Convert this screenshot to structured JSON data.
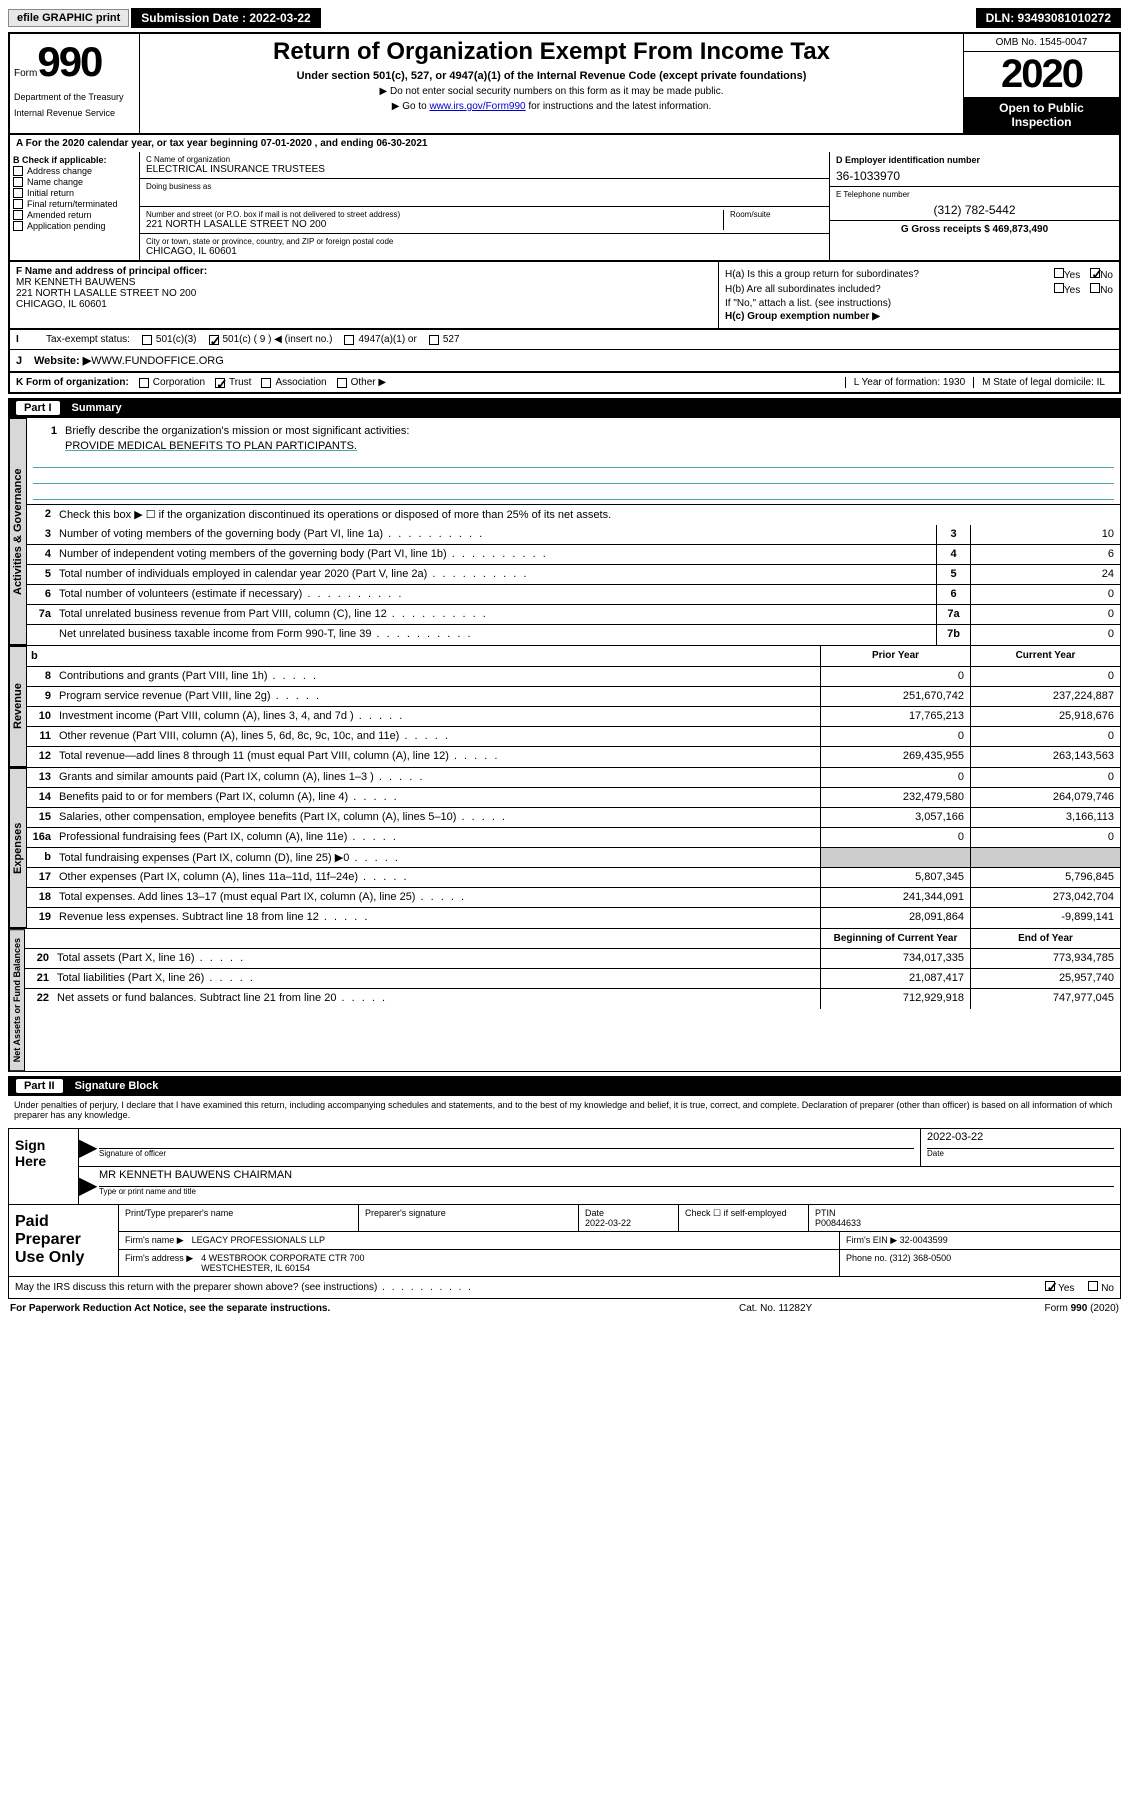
{
  "topbar": {
    "efile": "efile GRAPHIC print",
    "submission_label": "Submission Date : 2022-03-22",
    "dln": "DLN: 93493081010272"
  },
  "header": {
    "form_word": "Form",
    "form_num": "990",
    "dept1": "Department of the Treasury",
    "dept2": "Internal Revenue Service",
    "title": "Return of Organization Exempt From Income Tax",
    "subtitle": "Under section 501(c), 527, or 4947(a)(1) of the Internal Revenue Code (except private foundations)",
    "instruct1": "▶ Do not enter social security numbers on this form as it may be made public.",
    "instruct2_pre": "▶ Go to ",
    "instruct2_link": "www.irs.gov/Form990",
    "instruct2_post": " for instructions and the latest information.",
    "omb": "OMB No. 1545-0047",
    "year": "2020",
    "open1": "Open to Public",
    "open2": "Inspection"
  },
  "section_a": {
    "a_text": "A For the 2020 calendar year, or tax year beginning 07-01-2020    , and ending 06-30-2021",
    "b_label": "B Check if applicable:",
    "checks": [
      "Address change",
      "Name change",
      "Initial return",
      "Final return/terminated",
      "Amended return",
      "Application pending"
    ],
    "c_name_label": "C Name of organization",
    "c_name": "ELECTRICAL INSURANCE TRUSTEES",
    "dba_label": "Doing business as",
    "addr_label": "Number and street (or P.O. box if mail is not delivered to street address)",
    "addr": "221 NORTH LASALLE STREET NO 200",
    "room_label": "Room/suite",
    "city_label": "City or town, state or province, country, and ZIP or foreign postal code",
    "city": "CHICAGO, IL  60601",
    "d_label": "D Employer identification number",
    "d_val": "36-1033970",
    "e_label": "E Telephone number",
    "e_val": "(312) 782-5442",
    "g_label": "G Gross receipts $ 469,873,490"
  },
  "section_f": {
    "f_label": "F Name and address of principal officer:",
    "f_name": "MR KENNETH BAUWENS",
    "f_addr1": "221 NORTH LASALLE STREET NO 200",
    "f_addr2": "CHICAGO, IL  60601",
    "ha": "H(a)  Is this a group return for subordinates?",
    "hb": "H(b)  Are all subordinates included?",
    "hb_note": "If \"No,\" attach a list. (see instructions)",
    "hc": "H(c)  Group exemption number ▶",
    "yes": "Yes",
    "no": "No"
  },
  "tax_row": {
    "label": "Tax-exempt status:",
    "opts": [
      "501(c)(3)",
      "501(c) ( 9 ) ◀ (insert no.)",
      "4947(a)(1) or",
      "527"
    ]
  },
  "website": {
    "j_label": "J",
    "label": "Website: ▶",
    "val": " WWW.FUNDOFFICE.ORG"
  },
  "k_row": {
    "k_label": "K Form of organization:",
    "opts": [
      "Corporation",
      "Trust",
      "Association",
      "Other ▶"
    ],
    "l_label": "L Year of formation: 1930",
    "m_label": "M State of legal domicile: IL"
  },
  "part1": {
    "label": "Part I",
    "title": "Summary"
  },
  "governance": {
    "vlabel": "Activities & Governance",
    "r1_num": "1",
    "r1_text": "Briefly describe the organization's mission or most significant activities:",
    "r1_mission": "PROVIDE MEDICAL BENEFITS TO PLAN PARTICIPANTS.",
    "r2_num": "2",
    "r2_text": "Check this box ▶ ☐  if the organization discontinued its operations or disposed of more than 25% of its net assets.",
    "rows": [
      {
        "n": "3",
        "t": "Number of voting members of the governing body (Part VI, line 1a)",
        "box": "3",
        "val": "10"
      },
      {
        "n": "4",
        "t": "Number of independent voting members of the governing body (Part VI, line 1b)",
        "box": "4",
        "val": "6"
      },
      {
        "n": "5",
        "t": "Total number of individuals employed in calendar year 2020 (Part V, line 2a)",
        "box": "5",
        "val": "24"
      },
      {
        "n": "6",
        "t": "Total number of volunteers (estimate if necessary)",
        "box": "6",
        "val": "0"
      },
      {
        "n": "7a",
        "t": "Total unrelated business revenue from Part VIII, column (C), line 12",
        "box": "7a",
        "val": "0"
      },
      {
        "n": "",
        "t": "Net unrelated business taxable income from Form 990-T, line 39",
        "box": "7b",
        "val": "0"
      }
    ]
  },
  "revenue": {
    "vlabel": "Revenue",
    "hdr_b": "b",
    "hdr_prior": "Prior Year",
    "hdr_current": "Current Year",
    "rows": [
      {
        "n": "8",
        "t": "Contributions and grants (Part VIII, line 1h)",
        "p": "0",
        "c": "0"
      },
      {
        "n": "9",
        "t": "Program service revenue (Part VIII, line 2g)",
        "p": "251,670,742",
        "c": "237,224,887"
      },
      {
        "n": "10",
        "t": "Investment income (Part VIII, column (A), lines 3, 4, and 7d )",
        "p": "17,765,213",
        "c": "25,918,676"
      },
      {
        "n": "11",
        "t": "Other revenue (Part VIII, column (A), lines 5, 6d, 8c, 9c, 10c, and 11e)",
        "p": "0",
        "c": "0"
      },
      {
        "n": "12",
        "t": "Total revenue—add lines 8 through 11 (must equal Part VIII, column (A), line 12)",
        "p": "269,435,955",
        "c": "263,143,563"
      }
    ]
  },
  "expenses": {
    "vlabel": "Expenses",
    "rows": [
      {
        "n": "13",
        "t": "Grants and similar amounts paid (Part IX, column (A), lines 1–3 )",
        "p": "0",
        "c": "0"
      },
      {
        "n": "14",
        "t": "Benefits paid to or for members (Part IX, column (A), line 4)",
        "p": "232,479,580",
        "c": "264,079,746"
      },
      {
        "n": "15",
        "t": "Salaries, other compensation, employee benefits (Part IX, column (A), lines 5–10)",
        "p": "3,057,166",
        "c": "3,166,113"
      },
      {
        "n": "16a",
        "t": "Professional fundraising fees (Part IX, column (A), line 11e)",
        "p": "0",
        "c": "0"
      },
      {
        "n": "b",
        "t": "Total fundraising expenses (Part IX, column (D), line 25) ▶0",
        "p": "",
        "c": "",
        "shade": true
      },
      {
        "n": "17",
        "t": "Other expenses (Part IX, column (A), lines 11a–11d, 11f–24e)",
        "p": "5,807,345",
        "c": "5,796,845"
      },
      {
        "n": "18",
        "t": "Total expenses. Add lines 13–17 (must equal Part IX, column (A), line 25)",
        "p": "241,344,091",
        "c": "273,042,704"
      },
      {
        "n": "19",
        "t": "Revenue less expenses. Subtract line 18 from line 12",
        "p": "28,091,864",
        "c": "-9,899,141"
      }
    ]
  },
  "netassets": {
    "vlabel": "Net Assets or Fund Balances",
    "hdr_begin": "Beginning of Current Year",
    "hdr_end": "End of Year",
    "rows": [
      {
        "n": "20",
        "t": "Total assets (Part X, line 16)",
        "p": "734,017,335",
        "c": "773,934,785"
      },
      {
        "n": "21",
        "t": "Total liabilities (Part X, line 26)",
        "p": "21,087,417",
        "c": "25,957,740"
      },
      {
        "n": "22",
        "t": "Net assets or fund balances. Subtract line 21 from line 20",
        "p": "712,929,918",
        "c": "747,977,045"
      }
    ]
  },
  "part2": {
    "label": "Part II",
    "title": "Signature Block"
  },
  "sig": {
    "perjury": "Under penalties of perjury, I declare that I have examined this return, including accompanying schedules and statements, and to the best of my knowledge and belief, it is true, correct, and complete. Declaration of preparer (other than officer) is based on all information of which preparer has any knowledge.",
    "sign_here": "Sign Here",
    "sig_officer": "Signature of officer",
    "date_label": "Date",
    "date_val": "2022-03-22",
    "name_title": "MR KENNETH BAUWENS  CHAIRMAN",
    "type_label": "Type or print name and title"
  },
  "prep": {
    "title": "Paid Preparer Use Only",
    "print_label": "Print/Type preparer's name",
    "sig_label": "Preparer's signature",
    "date_label": "Date",
    "date_val": "2022-03-22",
    "check_label": "Check ☐ if self-employed",
    "ptin_label": "PTIN",
    "ptin_val": "P00844633",
    "firm_name_label": "Firm's name    ▶",
    "firm_name": "LEGACY PROFESSIONALS LLP",
    "firm_ein_label": "Firm's EIN ▶",
    "firm_ein": "32-0043599",
    "firm_addr_label": "Firm's address ▶",
    "firm_addr1": "4 WESTBROOK CORPORATE CTR 700",
    "firm_addr2": "WESTCHESTER, IL  60154",
    "phone_label": "Phone no.",
    "phone": "(312) 368-0500"
  },
  "discuss": {
    "text": "May the IRS discuss this return with the preparer shown above? (see instructions)",
    "yes": "Yes",
    "no": "No"
  },
  "footer": {
    "left": "For Paperwork Reduction Act Notice, see the separate instructions.",
    "mid": "Cat. No. 11282Y",
    "right_pre": "Form ",
    "right_form": "990",
    "right_post": " (2020)"
  }
}
